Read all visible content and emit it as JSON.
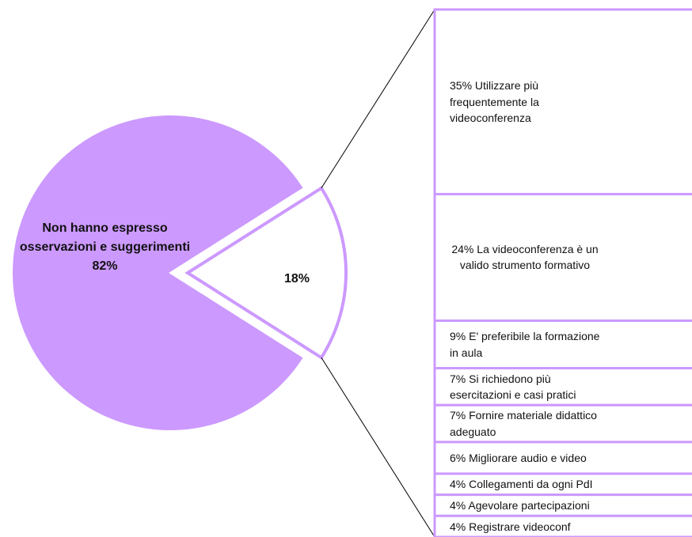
{
  "chart_data": {
    "type": "pie-of-bar",
    "pie": {
      "categories": [
        "Non hanno espresso osservazioni e suggerimenti",
        null
      ],
      "values": [
        82,
        18
      ],
      "value_labels": [
        "82%",
        "18%"
      ],
      "colors": [
        "#cc99ff",
        "#ffffff"
      ]
    },
    "bar": {
      "categories": [
        "Utilizzare più frequentemente la videoconferenza",
        "La videoconferenza è un valido strumento formativo",
        "E' preferibile la formazione in aula",
        "Si richiedono più esercitazioni e casi pratici",
        "Fornire materiale didattico adeguato",
        "Migliorare audio e video",
        "Collegamenti da ogni PdI",
        "Agevolare partecipazioni",
        "Registrare videoconf"
      ],
      "values": [
        35,
        24,
        9,
        7,
        7,
        6,
        4,
        4,
        4
      ],
      "value_labels": [
        "35%",
        "24%",
        "9%",
        "7%",
        "7%",
        "6%",
        "4%",
        "4%",
        "4%"
      ],
      "color": "#ffffff",
      "border_color": "#cc99ff"
    }
  }
}
